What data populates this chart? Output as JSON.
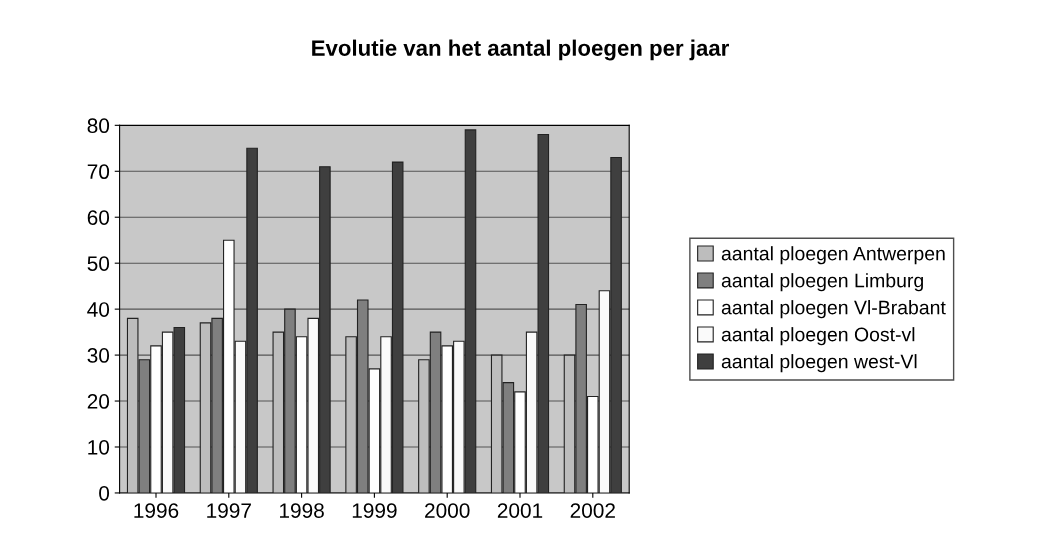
{
  "chart_data": {
    "type": "bar",
    "title": "Evolutie van het aantal ploegen per jaar",
    "categories": [
      "1996",
      "1997",
      "1998",
      "1999",
      "2000",
      "2001",
      "2002"
    ],
    "series": [
      {
        "name": "aantal ploegen Antwerpen",
        "color": "#bdbdbd",
        "values": [
          38,
          37,
          35,
          34,
          29,
          30,
          30
        ]
      },
      {
        "name": "aantal ploegen Limburg",
        "color": "#7f7f7f",
        "values": [
          29,
          38,
          40,
          42,
          35,
          24,
          41
        ]
      },
      {
        "name": "aantal ploegen Vl-Brabant",
        "color": "#ffffff",
        "values": [
          32,
          55,
          34,
          27,
          32,
          22,
          21
        ]
      },
      {
        "name": "aantal ploegen Oost-vl",
        "color": "#fafafa",
        "values": [
          35,
          33,
          38,
          34,
          33,
          35,
          44
        ]
      },
      {
        "name": "aantal ploegen west-Vl",
        "color": "#3f3f3f",
        "values": [
          36,
          75,
          71,
          72,
          79,
          78,
          73
        ]
      }
    ],
    "ylim": [
      0,
      80
    ],
    "yticks": [
      0,
      10,
      20,
      30,
      40,
      50,
      60,
      70,
      80
    ],
    "grid": "y",
    "legend": "right"
  }
}
